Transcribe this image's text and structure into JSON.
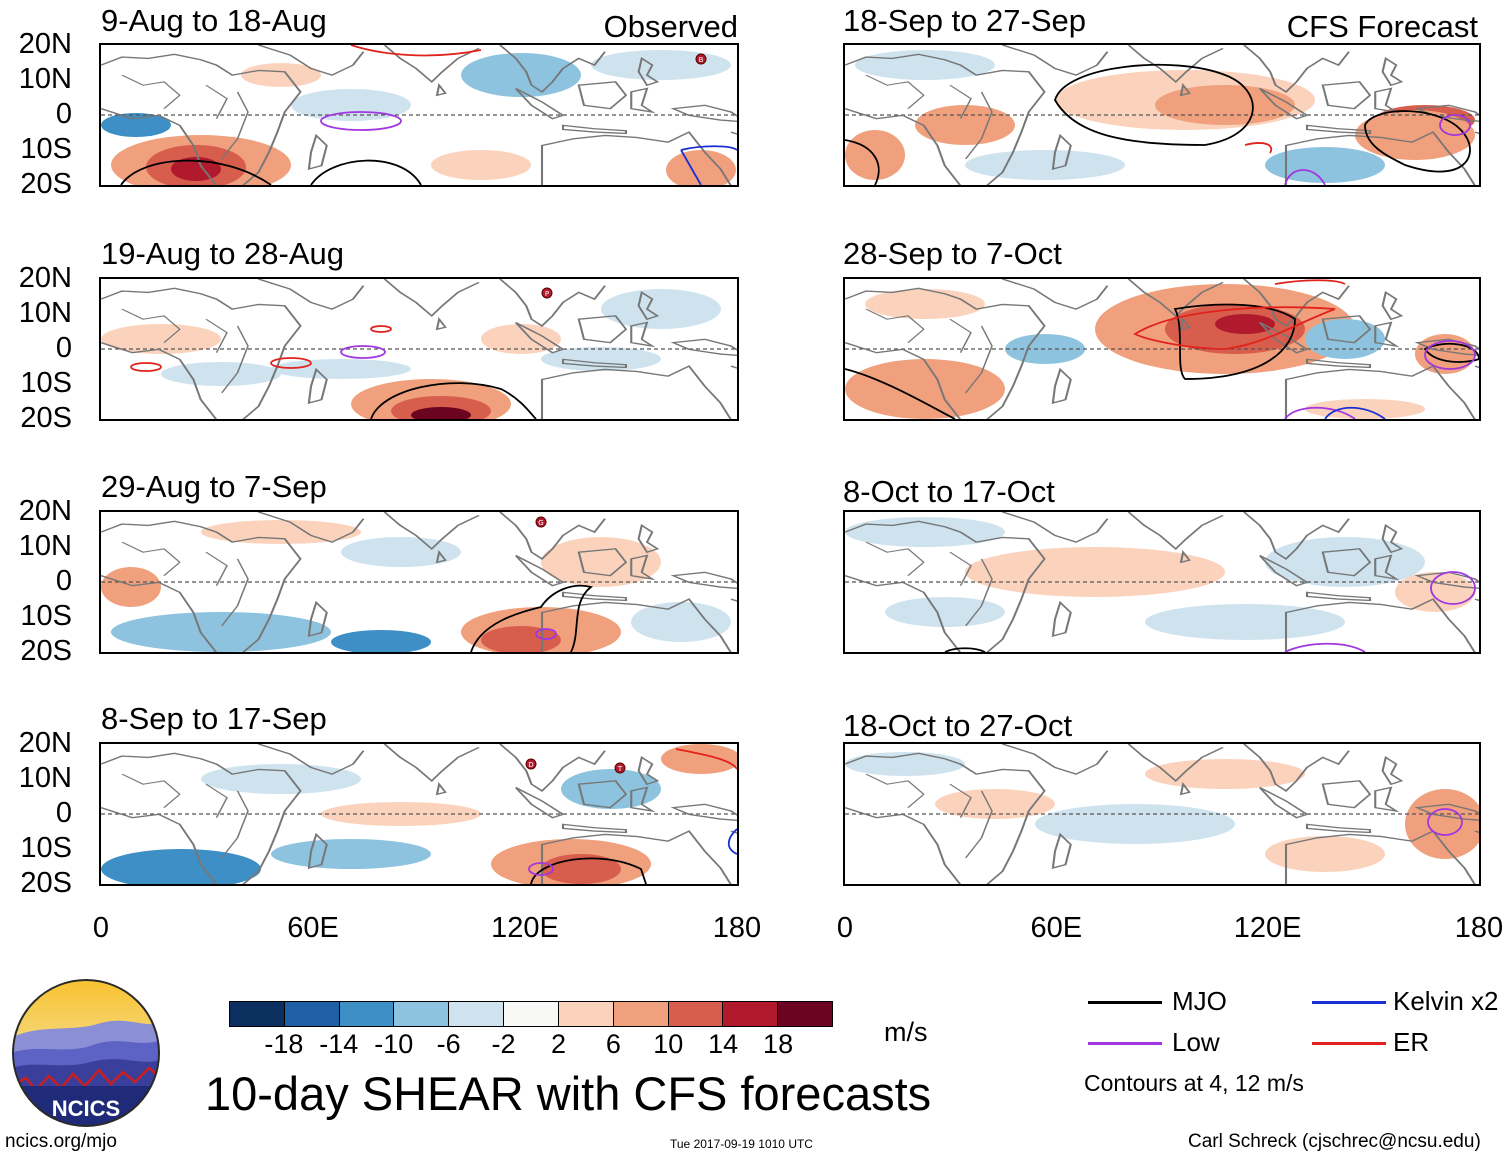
{
  "panels": {
    "p1": {
      "title": "9-Aug to 18-Aug",
      "corner": "Observed"
    },
    "p2": {
      "title": "19-Aug to 28-Aug"
    },
    "p3": {
      "title": "29-Aug to 7-Sep"
    },
    "p4": {
      "title": "8-Sep to 17-Sep"
    },
    "p5": {
      "title": "18-Sep to 27-Sep",
      "corner": "CFS Forecast"
    },
    "p6": {
      "title": "28-Sep to 7-Oct"
    },
    "p7": {
      "title": "8-Oct to 17-Oct"
    },
    "p8": {
      "title": "18-Oct to 27-Oct"
    }
  },
  "lat_labels": [
    "20N",
    "10N",
    "0",
    "10S",
    "20S"
  ],
  "lon_labels": [
    "0",
    "60E",
    "120E",
    "180"
  ],
  "storm_markers": {
    "p1": [
      "B"
    ],
    "p2": [
      "P"
    ],
    "p3": [
      "G"
    ],
    "p4": [
      "D",
      "T"
    ]
  },
  "colorbar": {
    "ticks": [
      "-18",
      "-14",
      "-10",
      "-6",
      "-2",
      "2",
      "6",
      "10",
      "14",
      "18"
    ],
    "units": "m/s",
    "colors": [
      "#0b2f5e",
      "#1f5fa3",
      "#3d8fc6",
      "#8dc3df",
      "#cfe3ef",
      "#f8f8f6",
      "#fbd3bd",
      "#f0a07d",
      "#d75d4c",
      "#b01a2c",
      "#6a0420"
    ]
  },
  "legend": {
    "mjo": "MJO",
    "kelvin": "Kelvin x2",
    "low": "Low",
    "er": "ER",
    "contours_note": "Contours at 4, 12 m/s",
    "colors": {
      "mjo": "#000000",
      "kelvin": "#1a2fd6",
      "low": "#a236e0",
      "er": "#e2221c"
    }
  },
  "main_title": "10-day SHEAR with CFS forecasts",
  "logo_text": "NCICS",
  "footer": {
    "url": "ncics.org/mjo",
    "timestamp": "Tue 2017-09-19 1010 UTC",
    "author": "Carl Schreck (cjschrec@ncsu.edu)"
  }
}
